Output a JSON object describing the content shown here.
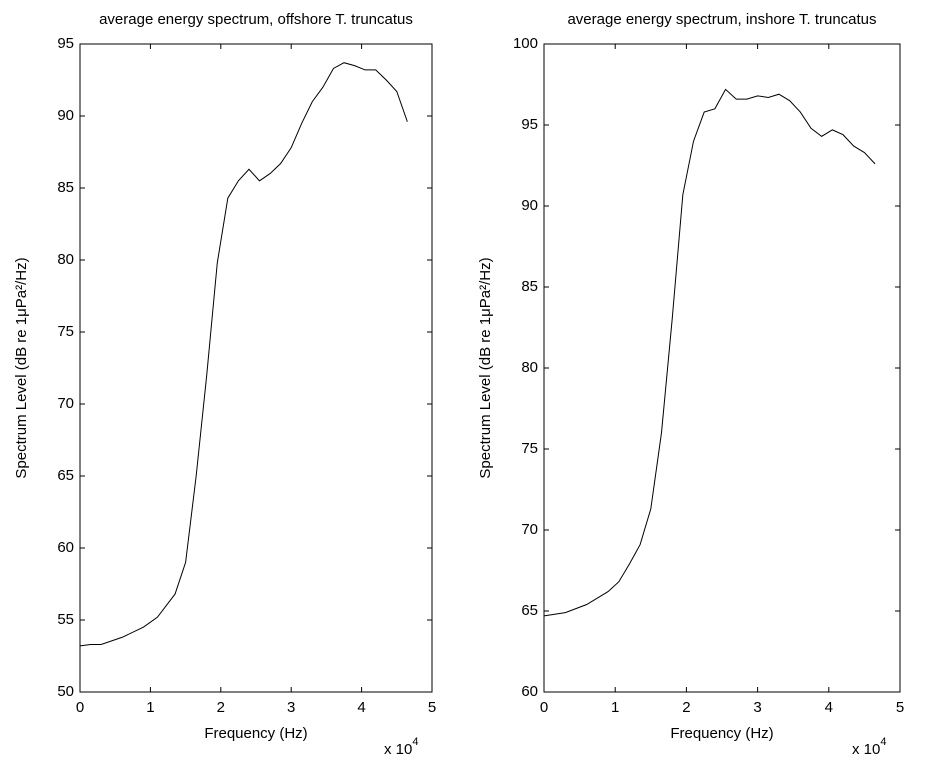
{
  "chart_data": [
    {
      "type": "line",
      "title": "average energy spectrum, offshore T. truncatus",
      "xlabel": "Frequency (Hz)",
      "ylabel": "Spectrum Level (dB re 1μPa²/Hz)",
      "x_multiplier": "x 10",
      "x_multiplier_exponent": "4",
      "x": [
        0,
        0.15,
        0.3,
        0.6,
        0.9,
        1.1,
        1.35,
        1.5,
        1.65,
        1.8,
        1.95,
        2.1,
        2.25,
        2.4,
        2.55,
        2.7,
        2.85,
        3.0,
        3.15,
        3.3,
        3.45,
        3.6,
        3.75,
        3.9,
        4.05,
        4.2,
        4.35,
        4.5,
        4.65
      ],
      "series": [
        {
          "color": "#000000",
          "values": [
            53.2,
            53.3,
            53.3,
            53.8,
            54.5,
            55.2,
            56.8,
            59.0,
            65,
            72,
            79.8,
            84.3,
            85.5,
            86.3,
            85.5,
            86.0,
            86.7,
            87.8,
            89.5,
            91.0,
            92.0,
            93.3,
            93.7,
            93.5,
            93.2,
            93.2,
            92.5,
            91.7,
            89.6
          ]
        }
      ],
      "xlim": [
        0,
        5
      ],
      "xticks": [
        0,
        1,
        2,
        3,
        4,
        5
      ],
      "ylim": [
        50,
        95
      ],
      "yticks": [
        50,
        55,
        60,
        65,
        70,
        75,
        80,
        85,
        90,
        95
      ]
    },
    {
      "type": "line",
      "title": "average energy spectrum, inshore T. truncatus",
      "xlabel": "Frequency (Hz)",
      "ylabel": "Spectrum Level (dB re 1μPa²/Hz)",
      "x_multiplier": "x 10",
      "x_multiplier_exponent": "4",
      "x": [
        0,
        0.3,
        0.6,
        0.9,
        1.05,
        1.2,
        1.35,
        1.5,
        1.65,
        1.8,
        1.95,
        2.1,
        2.25,
        2.4,
        2.55,
        2.7,
        2.85,
        3.0,
        3.15,
        3.3,
        3.45,
        3.6,
        3.75,
        3.9,
        4.05,
        4.2,
        4.35,
        4.5,
        4.65
      ],
      "series": [
        {
          "color": "#000000",
          "values": [
            64.7,
            64.9,
            65.4,
            66.2,
            66.8,
            67.9,
            69.1,
            71.3,
            76,
            83,
            90.7,
            94,
            95.8,
            96,
            97.2,
            96.6,
            96.6,
            96.8,
            96.7,
            96.9,
            96.5,
            95.8,
            94.8,
            94.3,
            94.7,
            94.4,
            93.7,
            93.3,
            92.6
          ]
        }
      ],
      "xlim": [
        0,
        5
      ],
      "xticks": [
        0,
        1,
        2,
        3,
        4,
        5
      ],
      "ylim": [
        60,
        100
      ],
      "yticks": [
        60,
        65,
        70,
        75,
        80,
        85,
        90,
        95,
        100
      ]
    }
  ]
}
